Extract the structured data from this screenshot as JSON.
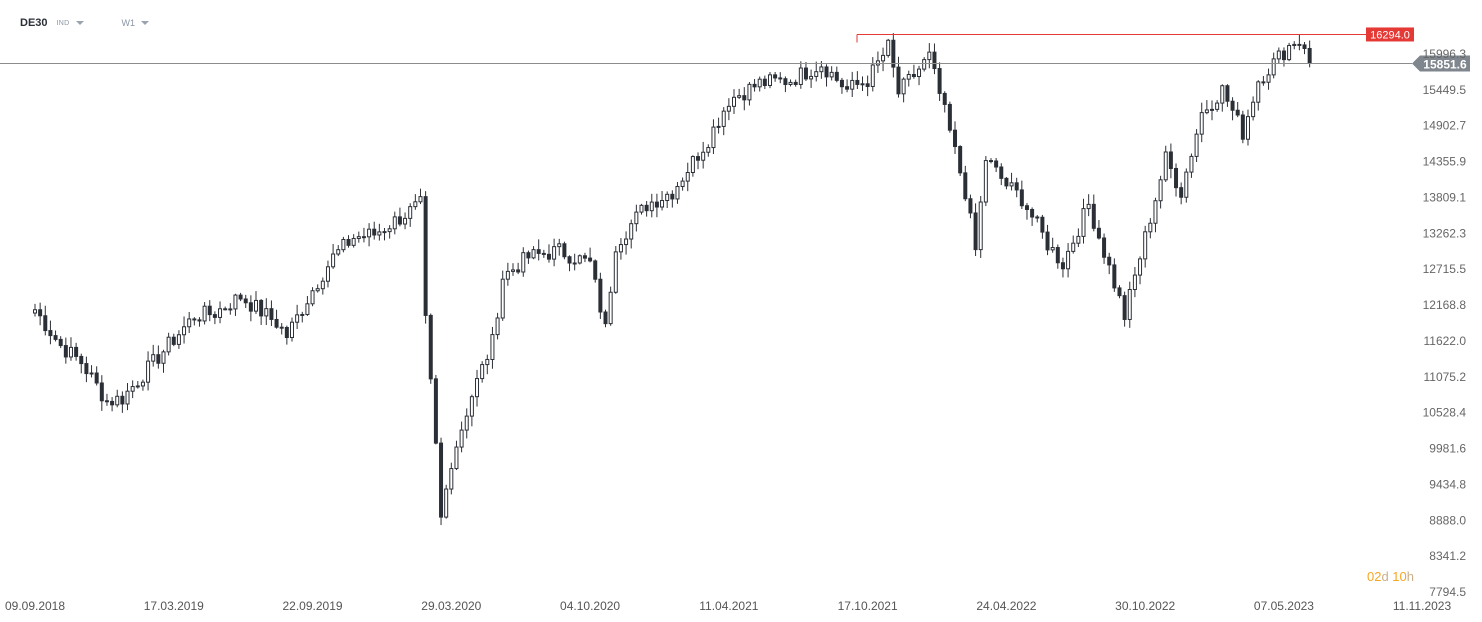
{
  "header": {
    "symbol": "DE30",
    "instrument_type": "IND",
    "timeframe": "W1"
  },
  "countdown": {
    "days": "02",
    "days_unit": "d",
    "hours": "10",
    "hours_unit": "h"
  },
  "colors": {
    "candle": "#2b2f36",
    "resistance_line": "#e53935",
    "current_line": "#8c8c8c",
    "countdown": "#f5a623"
  },
  "chart_data": {
    "type": "candlestick",
    "title": "",
    "xlabel": "",
    "ylabel": "",
    "ylim": [
      7794.5,
      16543.0
    ],
    "y_ticks": [
      "15996.3",
      "15449.5",
      "14902.7",
      "14355.9",
      "13809.1",
      "13262.3",
      "12715.5",
      "12168.8",
      "11622.0",
      "11075.2",
      "10528.4",
      "9981.6",
      "9434.8",
      "8888.0",
      "8341.2",
      "7794.5"
    ],
    "x_ticks": [
      "09.09.2018",
      "17.03.2019",
      "22.09.2019",
      "29.03.2020",
      "04.10.2020",
      "11.04.2021",
      "17.10.2021",
      "24.04.2022",
      "30.10.2022",
      "07.05.2023",
      "11.11.2023"
    ],
    "resistance": {
      "value": 16294.0,
      "label": "16294.0"
    },
    "current": {
      "value": 15851.6,
      "label": "15851.6"
    },
    "close_path": [
      [
        "09.09.2018",
        12100
      ],
      [
        "14.10.2018",
        11550
      ],
      [
        "11.11.2018",
        11300
      ],
      [
        "16.12.2018",
        10700
      ],
      [
        "06.01.2019",
        10750
      ],
      [
        "17.03.2019",
        11650
      ],
      [
        "14.04.2019",
        12000
      ],
      [
        "12.05.2019",
        12050
      ],
      [
        "16.06.2019",
        12300
      ],
      [
        "04.08.2019",
        11900
      ],
      [
        "18.08.2019",
        11700
      ],
      [
        "22.09.2019",
        12400
      ],
      [
        "20.10.2019",
        12900
      ],
      [
        "17.11.2019",
        13200
      ],
      [
        "15.12.2019",
        13250
      ],
      [
        "19.01.2020",
        13500
      ],
      [
        "16.02.2020",
        13700
      ],
      [
        "23.02.2020",
        11900
      ],
      [
        "08.03.2020",
        10000
      ],
      [
        "15.03.2020",
        8900
      ],
      [
        "29.03.2020",
        9800
      ],
      [
        "26.04.2020",
        10800
      ],
      [
        "24.05.2020",
        11600
      ],
      [
        "07.06.2020",
        12600
      ],
      [
        "12.07.2020",
        12900
      ],
      [
        "23.08.2020",
        13000
      ],
      [
        "04.10.2020",
        12800
      ],
      [
        "25.10.2020",
        11800
      ],
      [
        "08.11.2020",
        13100
      ],
      [
        "20.12.2020",
        13700
      ],
      [
        "24.01.2021",
        13900
      ],
      [
        "14.03.2021",
        14700
      ],
      [
        "11.04.2021",
        15300
      ],
      [
        "23.05.2021",
        15550
      ],
      [
        "04.07.2021",
        15600
      ],
      [
        "15.08.2021",
        15850
      ],
      [
        "19.09.2021",
        15450
      ],
      [
        "17.10.2021",
        15600
      ],
      [
        "14.11.2021",
        16100
      ],
      [
        "28.11.2021",
        15400
      ],
      [
        "09.01.2022",
        15950
      ],
      [
        "30.01.2022",
        15100
      ],
      [
        "27.02.2022",
        13900
      ],
      [
        "13.03.2022",
        13000
      ],
      [
        "27.03.2022",
        14400
      ],
      [
        "24.04.2022",
        14000
      ],
      [
        "15.05.2022",
        13800
      ],
      [
        "19.06.2022",
        13100
      ],
      [
        "10.07.2022",
        12800
      ],
      [
        "14.08.2022",
        13700
      ],
      [
        "18.09.2022",
        12500
      ],
      [
        "02.10.2022",
        12000
      ],
      [
        "30.10.2022",
        13200
      ],
      [
        "27.11.2022",
        14400
      ],
      [
        "18.12.2022",
        13900
      ],
      [
        "15.01.2023",
        15100
      ],
      [
        "12.02.2023",
        15450
      ],
      [
        "12.03.2023",
        14800
      ],
      [
        "02.04.2023",
        15600
      ],
      [
        "30.04.2023",
        15950
      ],
      [
        "21.05.2023",
        16200
      ],
      [
        "04.06.2023",
        16150
      ],
      [
        "11.06.2023",
        15851.6
      ]
    ]
  }
}
